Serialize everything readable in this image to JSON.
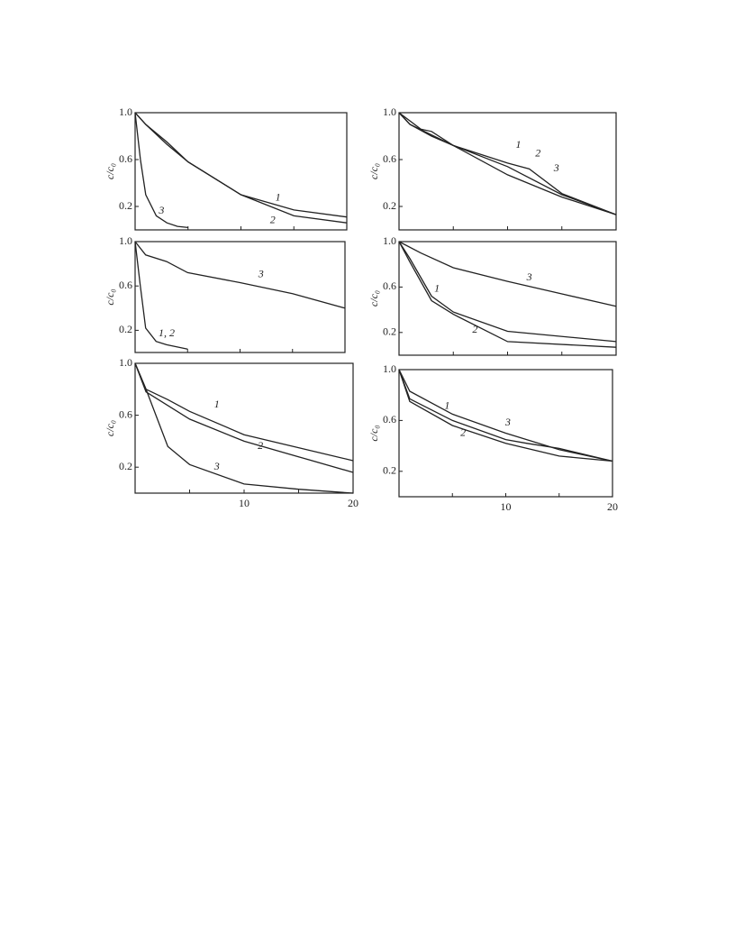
{
  "chart_data": [
    {
      "type": "line",
      "ylabel": "c/c₀",
      "xlim": [
        0,
        20
      ],
      "ylim": [
        0,
        1
      ],
      "yticks": [
        {
          "value": 1,
          "label": "1.0"
        },
        0.6,
        0.2
      ],
      "series": [
        {
          "name": "1",
          "color": "#222",
          "x": [
            0,
            1,
            3,
            5,
            10,
            15,
            20
          ],
          "values": [
            1,
            0.9,
            0.75,
            0.58,
            0.3,
            0.17,
            0.11
          ]
        },
        {
          "name": "2",
          "color": "#222",
          "x": [
            0,
            1,
            3,
            5,
            10,
            15,
            20
          ],
          "values": [
            1,
            0.9,
            0.73,
            0.58,
            0.3,
            0.12,
            0.06
          ]
        },
        {
          "name": "3",
          "color": "#222",
          "x": [
            0,
            0.5,
            1,
            2,
            3,
            4,
            5
          ],
          "values": [
            1,
            0.6,
            0.3,
            0.12,
            0.06,
            0.03,
            0.02
          ]
        }
      ]
    },
    {
      "type": "line",
      "ylabel": "c/c₀",
      "xlim": [
        0,
        20
      ],
      "ylim": [
        0,
        1
      ],
      "yticks": [
        {
          "value": 1,
          "label": "1.0"
        },
        0.6,
        0.2
      ],
      "series": [
        {
          "name": "1",
          "color": "#222",
          "x": [
            0,
            1,
            3,
            5,
            10,
            15,
            20
          ],
          "values": [
            1,
            0.9,
            0.8,
            0.72,
            0.54,
            0.3,
            0.13
          ]
        },
        {
          "name": "2",
          "color": "#222",
          "x": [
            0,
            2,
            3,
            5,
            10,
            12,
            15,
            20
          ],
          "values": [
            1,
            0.86,
            0.84,
            0.72,
            0.57,
            0.52,
            0.31,
            0.13
          ]
        },
        {
          "name": "3",
          "color": "#222",
          "x": [
            0,
            1,
            5,
            10,
            15,
            20
          ],
          "values": [
            1,
            0.9,
            0.72,
            0.47,
            0.28,
            0.13
          ]
        }
      ]
    },
    {
      "type": "line",
      "ylabel": "c/c₀",
      "xlim": [
        0,
        20
      ],
      "ylim": [
        0,
        1
      ],
      "yticks": [
        {
          "value": 1,
          "label": "1.0"
        },
        0.6,
        0.2
      ],
      "series": [
        {
          "name": "1, 2",
          "color": "#222",
          "x": [
            0,
            0.5,
            1,
            2,
            3,
            5
          ],
          "values": [
            1,
            0.6,
            0.22,
            0.1,
            0.07,
            0.03
          ]
        },
        {
          "name": "3",
          "color": "#222",
          "x": [
            0,
            1,
            3,
            5,
            10,
            15,
            20
          ],
          "values": [
            1,
            0.88,
            0.82,
            0.72,
            0.63,
            0.53,
            0.4
          ]
        }
      ]
    },
    {
      "type": "line",
      "ylabel": "c/c₀",
      "xlim": [
        0,
        20
      ],
      "ylim": [
        0,
        1
      ],
      "yticks": [
        {
          "value": 1,
          "label": "1.0"
        },
        0.6,
        0.2
      ],
      "series": [
        {
          "name": "1",
          "color": "#222",
          "x": [
            0,
            1,
            3,
            5,
            10,
            20
          ],
          "values": [
            1,
            0.85,
            0.52,
            0.38,
            0.21,
            0.12
          ]
        },
        {
          "name": "2",
          "color": "#222",
          "x": [
            0,
            1,
            3,
            5,
            10,
            20
          ],
          "values": [
            1,
            0.82,
            0.48,
            0.36,
            0.12,
            0.07
          ]
        },
        {
          "name": "3",
          "color": "#222",
          "x": [
            0,
            2,
            5,
            10,
            15,
            20
          ],
          "values": [
            1,
            0.9,
            0.77,
            0.65,
            0.54,
            0.43
          ]
        }
      ]
    },
    {
      "type": "line",
      "ylabel": "c/c₀",
      "xlim": [
        0,
        20
      ],
      "ylim": [
        0,
        1
      ],
      "yticks": [
        {
          "value": 1,
          "label": "1.0"
        },
        0.6,
        0.2
      ],
      "xticks": [
        10,
        20
      ],
      "series": [
        {
          "name": "1",
          "color": "#222",
          "x": [
            0,
            1,
            3,
            5,
            10,
            20
          ],
          "values": [
            1,
            0.8,
            0.72,
            0.63,
            0.45,
            0.25
          ]
        },
        {
          "name": "2",
          "color": "#222",
          "x": [
            0,
            1,
            5,
            10,
            15,
            20
          ],
          "values": [
            1,
            0.78,
            0.57,
            0.4,
            0.28,
            0.16
          ]
        },
        {
          "name": "3",
          "color": "#222",
          "x": [
            0,
            1,
            3,
            5,
            10,
            15,
            20
          ],
          "values": [
            1,
            0.8,
            0.36,
            0.22,
            0.07,
            0.03,
            0
          ]
        }
      ]
    },
    {
      "type": "line",
      "ylabel": "c/c₀",
      "xlim": [
        0,
        20
      ],
      "ylim": [
        0,
        1
      ],
      "yticks": [
        {
          "value": 1,
          "label": "1.0"
        },
        0.6,
        0.2
      ],
      "xticks": [
        10,
        20
      ],
      "series": [
        {
          "name": "1",
          "color": "#222",
          "x": [
            0,
            1,
            5,
            10,
            15,
            20
          ],
          "values": [
            1,
            0.83,
            0.65,
            0.5,
            0.37,
            0.28
          ]
        },
        {
          "name": "2",
          "color": "#222",
          "x": [
            0,
            1,
            5,
            10,
            15,
            20
          ],
          "values": [
            1,
            0.75,
            0.56,
            0.42,
            0.32,
            0.28
          ]
        },
        {
          "name": "3",
          "color": "#222",
          "x": [
            0,
            1,
            5,
            10,
            12,
            15,
            20
          ],
          "values": [
            1,
            0.77,
            0.6,
            0.45,
            0.42,
            0.38,
            0.28
          ]
        }
      ]
    }
  ]
}
